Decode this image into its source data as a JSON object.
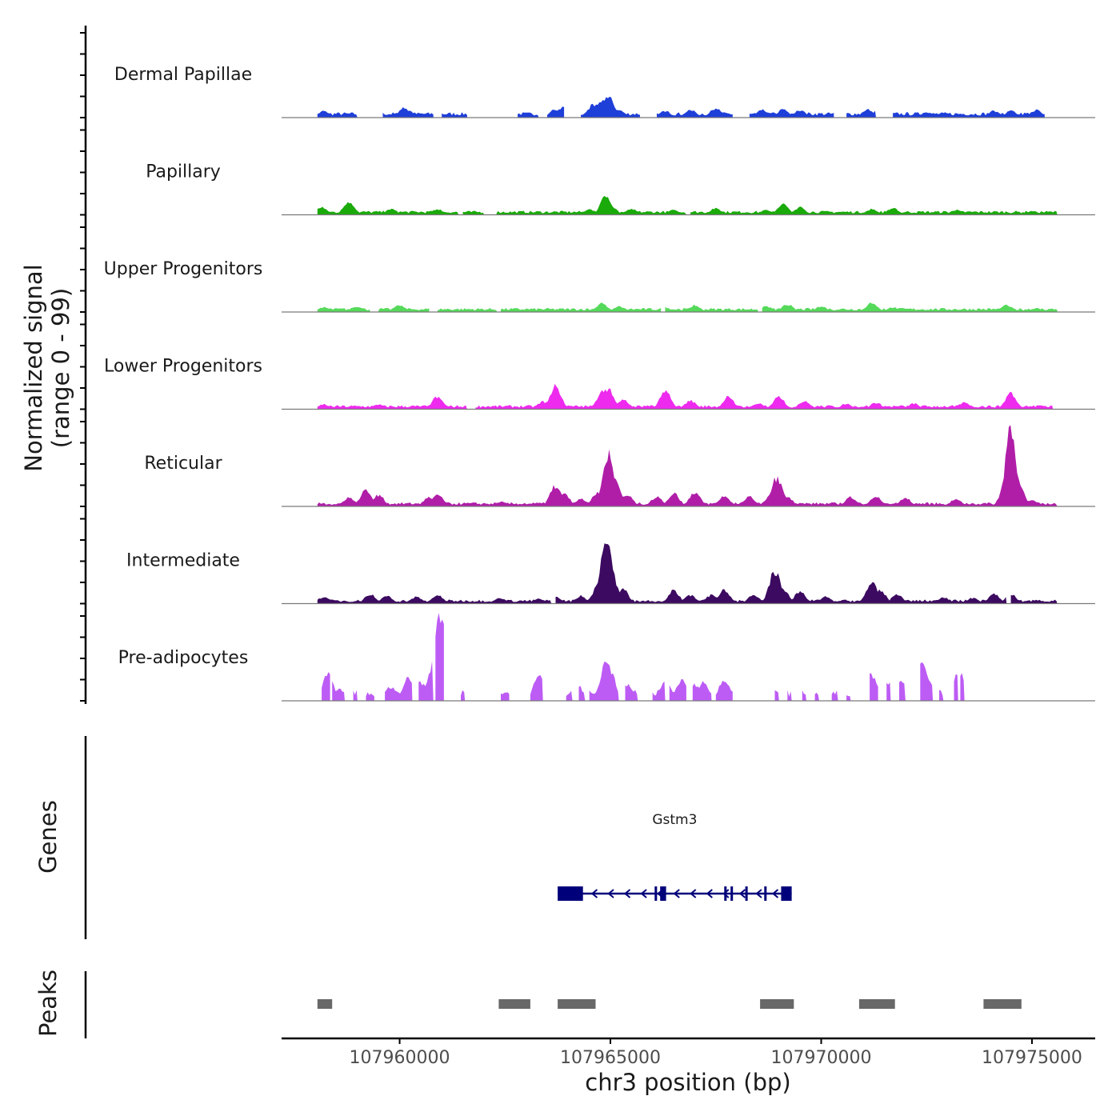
{
  "chart_data": {
    "type": "area",
    "title": "",
    "ylabel_line1": "Normalized signal",
    "ylabel_line2": "(range 0 - 99)",
    "xlabel": "chr3 position (bp)",
    "xlim": [
      107957200,
      107976500
    ],
    "xticks": [
      {
        "value": 107960000,
        "label": "107960000"
      },
      {
        "value": 107965000,
        "label": "107965000"
      },
      {
        "value": 107970000,
        "label": "107970000"
      },
      {
        "value": 107975000,
        "label": "107975000"
      }
    ],
    "ylim": [
      0,
      99
    ],
    "series": [
      {
        "name": "Dermal Papillae",
        "color": "#1f3fd9",
        "segments": [
          [
            107958050,
            107959000
          ],
          [
            107959600,
            107960800
          ],
          [
            107961000,
            107961600
          ],
          [
            107962800,
            107963300
          ],
          [
            107963500,
            107963900
          ],
          [
            107964300,
            107965700
          ],
          [
            107966100,
            107967900
          ],
          [
            107968300,
            107970300
          ],
          [
            107970600,
            107971300
          ],
          [
            107971700,
            107975300
          ]
        ],
        "baseline": 4,
        "peaks": [
          [
            107958200,
            7
          ],
          [
            107960100,
            10
          ],
          [
            107960200,
            8
          ],
          [
            107963700,
            9
          ],
          [
            107963900,
            12
          ],
          [
            107964600,
            14
          ],
          [
            107964800,
            17
          ],
          [
            107964950,
            22
          ],
          [
            107965200,
            8
          ],
          [
            107966300,
            7
          ],
          [
            107966900,
            8
          ],
          [
            107967500,
            10
          ],
          [
            107968600,
            8
          ],
          [
            107969100,
            9
          ],
          [
            107969500,
            8
          ],
          [
            107971100,
            9
          ],
          [
            107971400,
            10
          ],
          [
            107972500,
            6
          ],
          [
            107974100,
            7
          ],
          [
            107974500,
            7
          ],
          [
            107975100,
            8
          ]
        ]
      },
      {
        "name": "Papillary",
        "color": "#1aaa0a",
        "segments": [
          [
            107958050,
            107961400
          ],
          [
            107961500,
            107962000
          ],
          [
            107962300,
            107966800
          ],
          [
            107966900,
            107975600
          ]
        ],
        "baseline": 3,
        "peaks": [
          [
            107958150,
            8
          ],
          [
            107958800,
            14
          ],
          [
            107959800,
            6
          ],
          [
            107960900,
            6
          ],
          [
            107964500,
            6
          ],
          [
            107964900,
            20
          ],
          [
            107965000,
            10
          ],
          [
            107965500,
            6
          ],
          [
            107966500,
            5
          ],
          [
            107967500,
            7
          ],
          [
            107968700,
            5
          ],
          [
            107969100,
            11
          ],
          [
            107969500,
            8
          ],
          [
            107971200,
            6
          ],
          [
            107971700,
            7
          ],
          [
            107973200,
            5
          ],
          [
            107975000,
            4
          ]
        ]
      },
      {
        "name": "Upper Progenitors",
        "color": "#55d95a",
        "segments": [
          [
            107958050,
            107959300
          ],
          [
            107959500,
            107960700
          ],
          [
            107960900,
            107962300
          ],
          [
            107962400,
            107966200
          ],
          [
            107966300,
            107968500
          ],
          [
            107968600,
            107975600
          ]
        ],
        "baseline": 3,
        "peaks": [
          [
            107958200,
            5
          ],
          [
            107959000,
            6
          ],
          [
            107960000,
            7
          ],
          [
            107964800,
            9
          ],
          [
            107965200,
            6
          ],
          [
            107966300,
            5
          ],
          [
            107967000,
            7
          ],
          [
            107968700,
            6
          ],
          [
            107969200,
            8
          ],
          [
            107970000,
            6
          ],
          [
            107971200,
            10
          ],
          [
            107971700,
            5
          ],
          [
            107974400,
            7
          ],
          [
            107975100,
            4
          ]
        ]
      },
      {
        "name": "Lower Progenitors",
        "color": "#ee2aee",
        "segments": [
          [
            107958050,
            107961600
          ],
          [
            107961800,
            107975500
          ]
        ],
        "baseline": 3,
        "peaks": [
          [
            107958200,
            5
          ],
          [
            107959500,
            5
          ],
          [
            107960900,
            13
          ],
          [
            107963400,
            8
          ],
          [
            107963700,
            24
          ],
          [
            107964800,
            18
          ],
          [
            107964950,
            22
          ],
          [
            107965300,
            10
          ],
          [
            107966300,
            19
          ],
          [
            107966900,
            9
          ],
          [
            107967800,
            13
          ],
          [
            107968500,
            6
          ],
          [
            107969000,
            13
          ],
          [
            107969600,
            9
          ],
          [
            107970600,
            6
          ],
          [
            107971300,
            7
          ],
          [
            107972200,
            6
          ],
          [
            107973400,
            7
          ],
          [
            107974500,
            17
          ],
          [
            107975200,
            4
          ]
        ]
      },
      {
        "name": "Reticular",
        "color": "#b01ea8",
        "segments": [
          [
            107958050,
            107975600
          ]
        ],
        "baseline": 3,
        "peaks": [
          [
            107958800,
            9
          ],
          [
            107959200,
            18
          ],
          [
            107959500,
            12
          ],
          [
            107960700,
            10
          ],
          [
            107960900,
            12
          ],
          [
            107962400,
            5
          ],
          [
            107963700,
            22
          ],
          [
            107963900,
            14
          ],
          [
            107964300,
            8
          ],
          [
            107964700,
            15
          ],
          [
            107964950,
            55
          ],
          [
            107965100,
            30
          ],
          [
            107965400,
            12
          ],
          [
            107966100,
            10
          ],
          [
            107966500,
            14
          ],
          [
            107967000,
            15
          ],
          [
            107967700,
            11
          ],
          [
            107968300,
            10
          ],
          [
            107968800,
            12
          ],
          [
            107968950,
            30
          ],
          [
            107969200,
            10
          ],
          [
            107970700,
            10
          ],
          [
            107971300,
            10
          ],
          [
            107972000,
            9
          ],
          [
            107973200,
            8
          ],
          [
            107974400,
            30
          ],
          [
            107974500,
            80
          ],
          [
            107974650,
            30
          ],
          [
            107975000,
            6
          ]
        ]
      },
      {
        "name": "Intermediate",
        "color": "#3c0a60",
        "segments": [
          [
            107958050,
            107963600
          ],
          [
            107963700,
            107974400
          ],
          [
            107974500,
            107975600
          ]
        ],
        "baseline": 3,
        "peaks": [
          [
            107958200,
            7
          ],
          [
            107959300,
            10
          ],
          [
            107959700,
            8
          ],
          [
            107960400,
            7
          ],
          [
            107960900,
            9
          ],
          [
            107962400,
            6
          ],
          [
            107963300,
            5
          ],
          [
            107963700,
            7
          ],
          [
            107964300,
            8
          ],
          [
            107964700,
            18
          ],
          [
            107964900,
            70
          ],
          [
            107965000,
            40
          ],
          [
            107965300,
            15
          ],
          [
            107966500,
            14
          ],
          [
            107966900,
            9
          ],
          [
            107967400,
            9
          ],
          [
            107967700,
            15
          ],
          [
            107968400,
            9
          ],
          [
            107968900,
            35
          ],
          [
            107969100,
            14
          ],
          [
            107969500,
            13
          ],
          [
            107970100,
            7
          ],
          [
            107971200,
            22
          ],
          [
            107971400,
            14
          ],
          [
            107971800,
            10
          ],
          [
            107972900,
            7
          ],
          [
            107973600,
            6
          ],
          [
            107974100,
            10
          ],
          [
            107974500,
            10
          ],
          [
            107975200,
            3
          ]
        ]
      },
      {
        "name": "Pre-adipocytes",
        "color": "#bd5cf5",
        "segments": [
          [
            107958150,
            107958350
          ],
          [
            107958400,
            107958700
          ],
          [
            107958900,
            107959000
          ],
          [
            107959200,
            107959400
          ],
          [
            107959650,
            107960300
          ],
          [
            107960450,
            107960800
          ],
          [
            107960850,
            107961050
          ],
          [
            107961450,
            107961550
          ],
          [
            107962400,
            107962600
          ],
          [
            107963100,
            107963400
          ],
          [
            107963950,
            107964100
          ],
          [
            107964250,
            107964400
          ],
          [
            107964500,
            107965200
          ],
          [
            107965350,
            107965650
          ],
          [
            107966000,
            107966300
          ],
          [
            107966400,
            107966800
          ],
          [
            107966950,
            107967400
          ],
          [
            107967500,
            107967900
          ],
          [
            107968900,
            107969000
          ],
          [
            107969200,
            107969300
          ],
          [
            107969550,
            107969650
          ],
          [
            107969850,
            107969950
          ],
          [
            107970250,
            107970400
          ],
          [
            107970600,
            107970700
          ],
          [
            107971150,
            107971350
          ],
          [
            107971550,
            107971650
          ],
          [
            107971850,
            107972000
          ],
          [
            107972350,
            107972650
          ],
          [
            107972800,
            107972900
          ],
          [
            107973150,
            107973250
          ],
          [
            107973300,
            107973400
          ]
        ],
        "baseline": 8,
        "peaks": [
          [
            107958300,
            28
          ],
          [
            107958600,
            12
          ],
          [
            107959800,
            15
          ],
          [
            107960200,
            24
          ],
          [
            107960500,
            20
          ],
          [
            107960750,
            30
          ],
          [
            107960950,
            98
          ],
          [
            107961100,
            55
          ],
          [
            107961200,
            40
          ],
          [
            107963300,
            25
          ],
          [
            107964200,
            18
          ],
          [
            107964900,
            45
          ],
          [
            107965000,
            30
          ],
          [
            107965400,
            18
          ],
          [
            107966300,
            20
          ],
          [
            107966700,
            22
          ],
          [
            107967000,
            18
          ],
          [
            107967200,
            20
          ],
          [
            107967700,
            22
          ],
          [
            107968900,
            10
          ],
          [
            107971200,
            28
          ],
          [
            107971600,
            18
          ],
          [
            107971900,
            22
          ],
          [
            107972400,
            40
          ],
          [
            107972500,
            25
          ],
          [
            107973200,
            25
          ],
          [
            107973300,
            28
          ]
        ]
      }
    ],
    "genes_label": "Genes",
    "gene": {
      "name": "Gstm3",
      "strand": "-",
      "start": 107963750,
      "end": 107969300,
      "exons": [
        [
          107963750,
          107964350
        ],
        [
          107966050,
          107966100
        ],
        [
          107966180,
          107966320
        ],
        [
          107967700,
          107967750
        ],
        [
          107967850,
          107967900
        ],
        [
          107968200,
          107968250
        ],
        [
          107968650,
          107968700
        ],
        [
          107969050,
          107969300
        ]
      ]
    },
    "peaks_label": "Peaks",
    "peak_regions": [
      [
        107958050,
        107958400
      ],
      [
        107962350,
        107963100
      ],
      [
        107963750,
        107964650
      ],
      [
        107968550,
        107969350
      ],
      [
        107970900,
        107971750
      ],
      [
        107973850,
        107974750
      ]
    ]
  }
}
